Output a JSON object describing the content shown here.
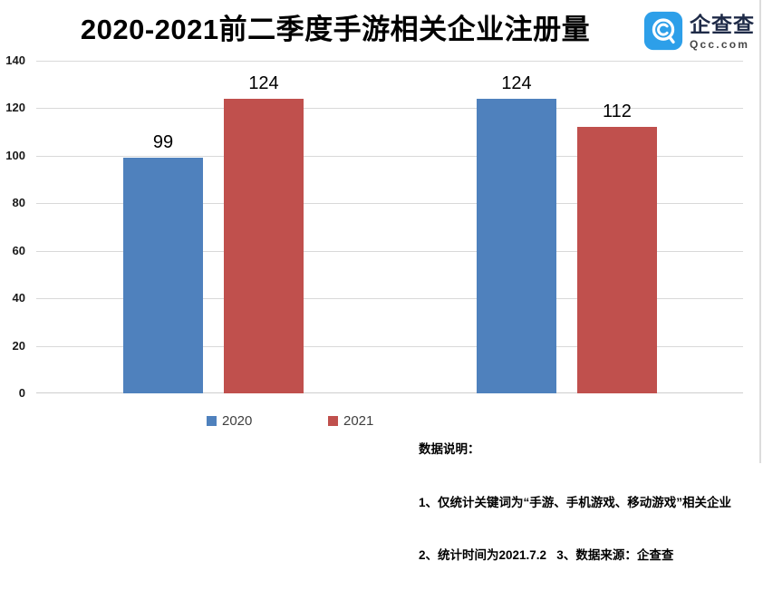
{
  "chart_data": {
    "type": "bar",
    "title": "2020-2021前二季度手游相关企业注册量",
    "categories": [
      "",
      ""
    ],
    "series": [
      {
        "name": "2020",
        "color": "#4F81BD",
        "values": [
          99,
          124
        ]
      },
      {
        "name": "2021",
        "color": "#C0504D",
        "values": [
          124,
          112
        ]
      }
    ],
    "xlabel": "",
    "ylabel": "",
    "ylim": [
      0,
      140
    ],
    "ytick_step": 20,
    "yticks": [
      0,
      20,
      40,
      60,
      80,
      100,
      120,
      140
    ],
    "grid": true,
    "data_labels": true,
    "legend_position": "bottom"
  },
  "logo": {
    "name": "企查查",
    "domain": "Qcc.com",
    "icon": "qcc-magnifier-icon",
    "brand_color": "#2D9FE9"
  },
  "notes": {
    "heading": "数据说明：",
    "lines": [
      "1、仅统计关键词为“手游、手机游戏、移动游戏”相关企业",
      "2、统计时间为2021.7.2   3、数据来源：企查查"
    ]
  },
  "colors": {
    "grid": "#D9D9D9",
    "bar_2020": "#4F81BD",
    "bar_2021": "#C0504D",
    "title_text": "#000000"
  }
}
